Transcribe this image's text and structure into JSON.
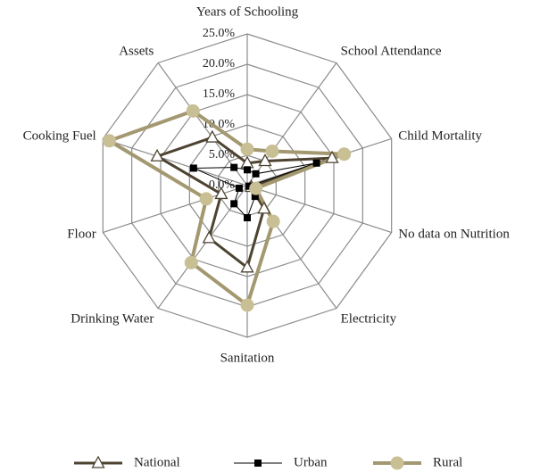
{
  "chart_data": {
    "type": "radar",
    "categories": [
      "Years of Schooling",
      "School Attendance",
      "Child Mortality",
      "No data on Nutrition",
      "Electricity",
      "Sanitation",
      "Drinking Water",
      "Floor",
      "Cooking Fuel",
      "Assets"
    ],
    "ylim": [
      0,
      25
    ],
    "yticks": [
      {
        "value": 0,
        "label": "0.0%"
      },
      {
        "value": 5,
        "label": "5.0%"
      },
      {
        "value": 10,
        "label": "10.0%"
      },
      {
        "value": 15,
        "label": "15.0%"
      },
      {
        "value": 20,
        "label": "20.0%"
      },
      {
        "value": 25,
        "label": "25.0%"
      }
    ],
    "grid": true,
    "legend": "bottom",
    "series": [
      {
        "name": "National",
        "color": "#4d4330",
        "marker": "triangle",
        "values": [
          3.7,
          5.0,
          14.7,
          0.7,
          4.7,
          13.5,
          10.7,
          4.5,
          15.6,
          9.8
        ]
      },
      {
        "name": "Urban",
        "color": "#000000",
        "marker": "square",
        "values": [
          2.6,
          2.4,
          12.0,
          0.3,
          2.2,
          5.3,
          3.7,
          1.4,
          9.3,
          3.7
        ]
      },
      {
        "name": "Rural",
        "color": "#a39870",
        "marker": "circle",
        "values": [
          6.0,
          7.0,
          16.8,
          1.5,
          7.3,
          19.7,
          15.7,
          7.1,
          23.9,
          15.2
        ]
      }
    ]
  }
}
